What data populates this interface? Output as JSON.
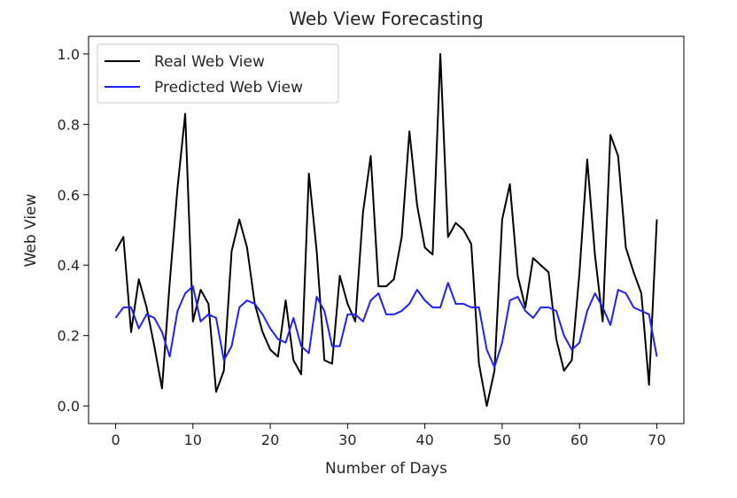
{
  "chart_data": {
    "type": "line",
    "title": "Web View Forecasting",
    "xlabel": "Number of Days",
    "ylabel": "Web View",
    "xlim": [
      -3.5,
      73.5
    ],
    "ylim": [
      -0.05,
      1.05
    ],
    "xticks": [
      0,
      10,
      20,
      30,
      40,
      50,
      60,
      70
    ],
    "yticks": [
      0.0,
      0.2,
      0.4,
      0.6,
      0.8,
      1.0
    ],
    "grid": false,
    "legend_position": "top-left",
    "x": [
      0,
      1,
      2,
      3,
      4,
      5,
      6,
      7,
      8,
      9,
      10,
      11,
      12,
      13,
      14,
      15,
      16,
      17,
      18,
      19,
      20,
      21,
      22,
      23,
      24,
      25,
      26,
      27,
      28,
      29,
      30,
      31,
      32,
      33,
      34,
      35,
      36,
      37,
      38,
      39,
      40,
      41,
      42,
      43,
      44,
      45,
      46,
      47,
      48,
      49,
      50,
      51,
      52,
      53,
      54,
      55,
      56,
      57,
      58,
      59,
      60,
      61,
      62,
      63,
      64,
      65,
      66,
      67,
      68,
      69,
      70
    ],
    "series": [
      {
        "name": "Real Web View",
        "color": "#000000",
        "values": [
          0.44,
          0.48,
          0.21,
          0.36,
          0.28,
          0.17,
          0.05,
          0.35,
          0.62,
          0.83,
          0.24,
          0.33,
          0.29,
          0.04,
          0.1,
          0.44,
          0.53,
          0.45,
          0.29,
          0.21,
          0.16,
          0.14,
          0.3,
          0.13,
          0.09,
          0.66,
          0.44,
          0.13,
          0.12,
          0.37,
          0.29,
          0.24,
          0.55,
          0.71,
          0.34,
          0.34,
          0.36,
          0.48,
          0.78,
          0.57,
          0.45,
          0.43,
          1.0,
          0.48,
          0.52,
          0.5,
          0.46,
          0.12,
          0.0,
          0.1,
          0.53,
          0.63,
          0.37,
          0.28,
          0.42,
          0.4,
          0.38,
          0.19,
          0.1,
          0.13,
          0.38,
          0.7,
          0.43,
          0.24,
          0.77,
          0.71,
          0.45,
          0.38,
          0.32,
          0.06,
          0.53
        ]
      },
      {
        "name": "Predicted Web View",
        "color": "#1f1fff",
        "values": [
          0.25,
          0.28,
          0.28,
          0.22,
          0.26,
          0.25,
          0.21,
          0.14,
          0.27,
          0.32,
          0.34,
          0.24,
          0.26,
          0.25,
          0.13,
          0.17,
          0.28,
          0.3,
          0.29,
          0.26,
          0.22,
          0.19,
          0.18,
          0.25,
          0.17,
          0.15,
          0.31,
          0.27,
          0.17,
          0.17,
          0.26,
          0.26,
          0.24,
          0.3,
          0.32,
          0.26,
          0.26,
          0.27,
          0.29,
          0.33,
          0.3,
          0.28,
          0.28,
          0.35,
          0.29,
          0.29,
          0.28,
          0.28,
          0.16,
          0.11,
          0.18,
          0.3,
          0.31,
          0.27,
          0.25,
          0.28,
          0.28,
          0.27,
          0.2,
          0.16,
          0.18,
          0.27,
          0.32,
          0.28,
          0.23,
          0.33,
          0.32,
          0.28,
          0.27,
          0.26,
          0.14
        ]
      }
    ]
  }
}
